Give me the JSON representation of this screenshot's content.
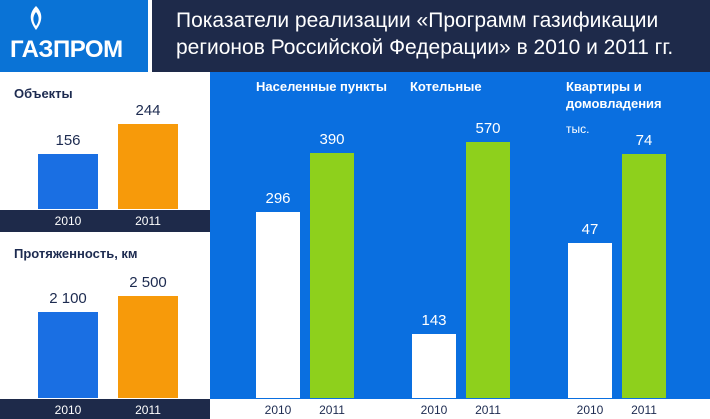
{
  "header": {
    "logo_text": "ГАЗПРОМ",
    "title_line1": "Показатели реализации «Программ газификации",
    "title_line2": "регионов Российской Федерации» в 2010 и 2011 гг."
  },
  "colors": {
    "brand_blue": "#0a73d6",
    "panel_blue": "#0a6fe0",
    "navy": "#1e2a4a",
    "bar_2010_left": "#1a6fe3",
    "bar_2011_left": "#f79a0a",
    "bar_2010_right": "#ffffff",
    "bar_2011_right": "#8ed01c"
  },
  "chart_data": [
    {
      "type": "bar",
      "title": "Объекты",
      "categories": [
        "2010",
        "2011"
      ],
      "values": [
        156,
        244
      ],
      "labels": [
        "156",
        "244"
      ]
    },
    {
      "type": "bar",
      "title": "Протяженность, км",
      "categories": [
        "2010",
        "2011"
      ],
      "values": [
        2100,
        2500
      ],
      "labels": [
        "2 100",
        "2 500"
      ]
    },
    {
      "type": "bar",
      "title": "Населенные пункты",
      "categories": [
        "2010",
        "2011"
      ],
      "values": [
        296,
        390
      ],
      "labels": [
        "296",
        "390"
      ]
    },
    {
      "type": "bar",
      "title": "Котельные",
      "categories": [
        "2010",
        "2011"
      ],
      "values": [
        143,
        570
      ],
      "labels": [
        "143",
        "570"
      ]
    },
    {
      "type": "bar",
      "title": "Квартиры и домовладения",
      "subtitle": "тыс.",
      "categories": [
        "2010",
        "2011"
      ],
      "values": [
        47,
        74
      ],
      "labels": [
        "47",
        "74"
      ]
    }
  ]
}
